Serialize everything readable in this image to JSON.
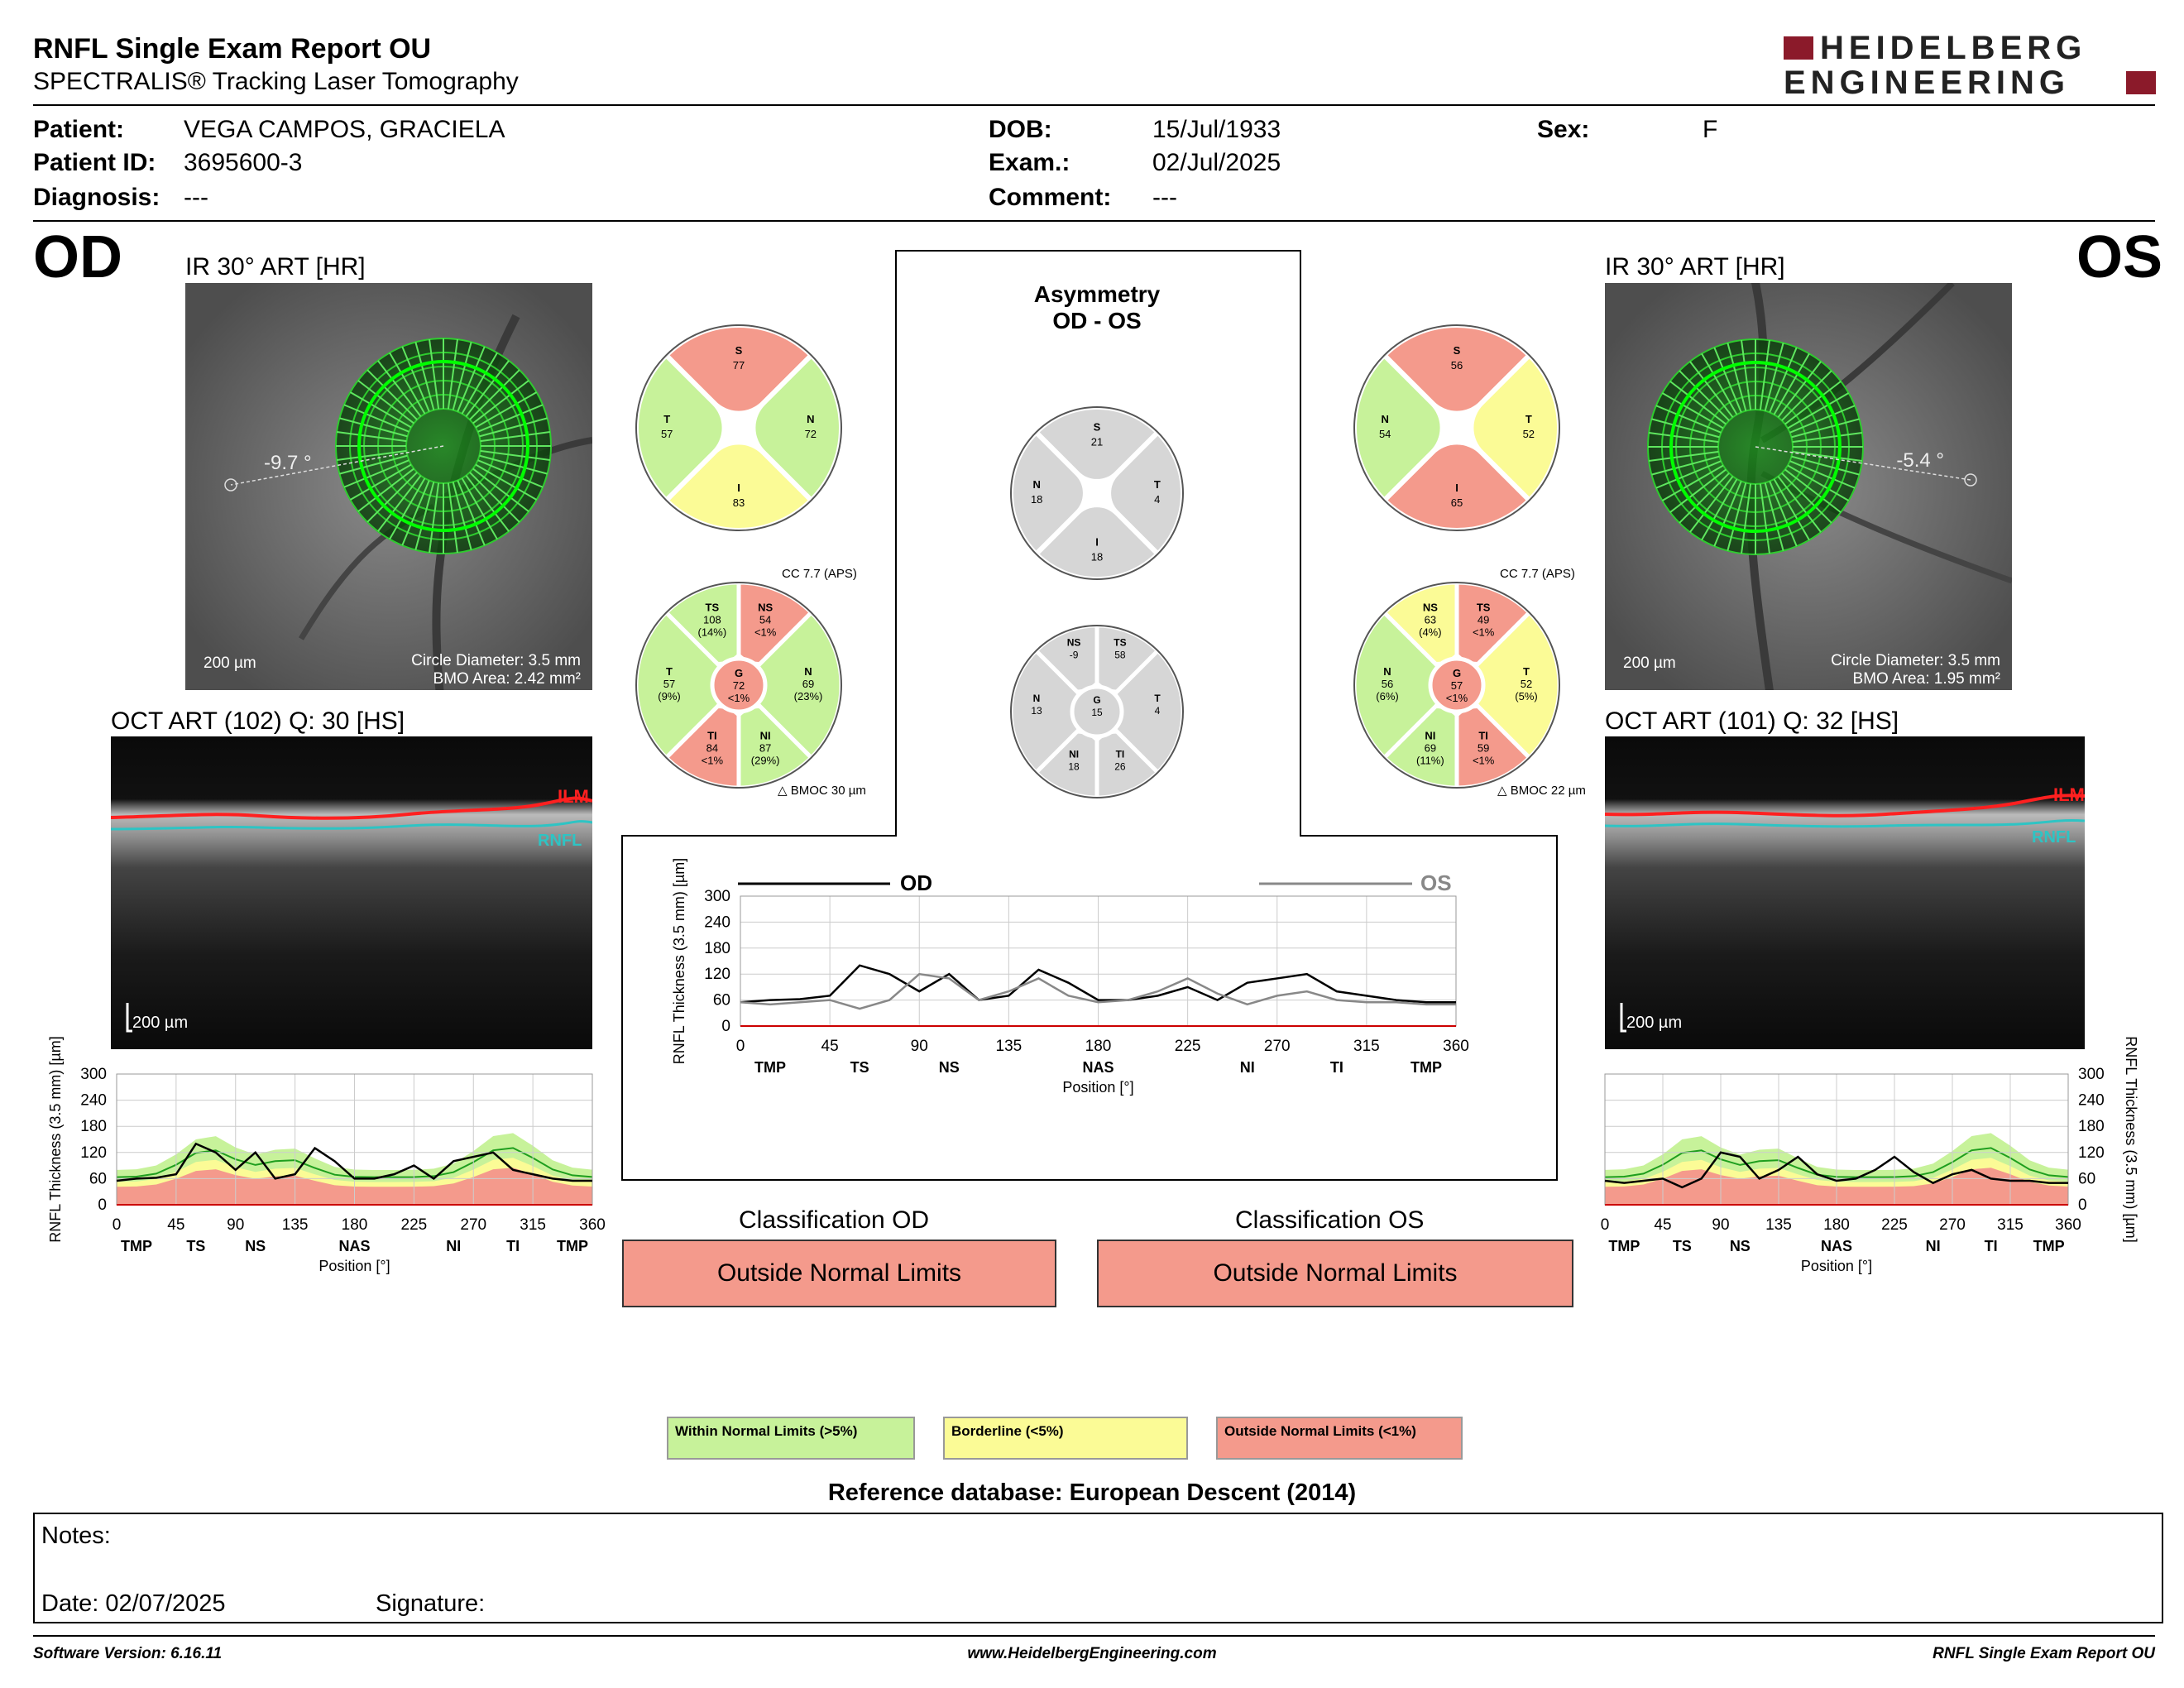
{
  "header": {
    "title": "RNFL Single Exam Report OU",
    "subtitle": "SPECTRALIS® Tracking Laser Tomography",
    "logo_line1": "HEIDELBERG",
    "logo_line2": "ENGINEERING"
  },
  "patient": {
    "patient_label": "Patient:",
    "patient_value": "VEGA CAMPOS, GRACIELA",
    "id_label": "Patient ID:",
    "id_value": "3695600-3",
    "diagnosis_label": "Diagnosis:",
    "diagnosis_value": "---",
    "dob_label": "DOB:",
    "dob_value": "15/Jul/1933",
    "exam_label": "Exam.:",
    "exam_value": "02/Jul/2025",
    "comment_label": "Comment:",
    "comment_value": "---",
    "sex_label": "Sex:",
    "sex_value": "F"
  },
  "od": {
    "eye": "OD",
    "ir_title": "IR 30° ART [HR]",
    "angle": "-9.7 °",
    "scale": "200 µm",
    "circle_diameter": "Circle Diameter: 3.5 mm",
    "bmo_area": "BMO Area: 2.42 mm²",
    "oct_title": "OCT ART (102) Q: 30 [HS]",
    "oct_scale": "200 µm",
    "ilm": "ILM",
    "rnfl": "RNFL",
    "cc": "CC 7.7 (APS)",
    "bmoc": "BMOC 30 µm",
    "quad": {
      "S": "77",
      "T": "57",
      "N": "72",
      "I": "83"
    },
    "sectors": {
      "TS": [
        "108",
        "(14%)"
      ],
      "NS": [
        "54",
        "<1%"
      ],
      "T": [
        "57",
        "(9%)"
      ],
      "N": [
        "69",
        "(23%)"
      ],
      "G": [
        "72",
        "<1%"
      ],
      "TI": [
        "84",
        "<1%"
      ],
      "NI": [
        "87",
        "(29%)"
      ]
    },
    "class_title": "Classification OD",
    "class_value": "Outside Normal Limits"
  },
  "os": {
    "eye": "OS",
    "ir_title": "IR 30° ART [HR]",
    "angle": "-5.4 °",
    "scale": "200 µm",
    "circle_diameter": "Circle Diameter: 3.5 mm",
    "bmo_area": "BMO Area: 1.95 mm²",
    "oct_title": "OCT ART (101) Q: 32 [HS]",
    "oct_scale": "200 µm",
    "ilm": "ILM",
    "rnfl": "RNFL",
    "cc": "CC 7.7 (APS)",
    "bmoc": "BMOC 22 µm",
    "quad": {
      "S": "56",
      "N": "54",
      "T": "52",
      "I": "65"
    },
    "sectors": {
      "NS": [
        "63",
        "(4%)"
      ],
      "TS": [
        "49",
        "<1%"
      ],
      "N": [
        "56",
        "(6%)"
      ],
      "T": [
        "52",
        "(5%)"
      ],
      "G": [
        "57",
        "<1%"
      ],
      "NI": [
        "69",
        "(11%)"
      ],
      "TI": [
        "59",
        "<1%"
      ]
    },
    "class_title": "Classification OS",
    "class_value": "Outside Normal Limits"
  },
  "asym": {
    "title1": "Asymmetry",
    "title2": "OD - OS",
    "quad": {
      "S": "21",
      "N": "18",
      "T": "4",
      "I": "18"
    },
    "sectors": {
      "NS": "-9",
      "TS": "58",
      "N": "13",
      "G": "15",
      "T": "4",
      "NI": "18",
      "TI": "26"
    }
  },
  "axis": {
    "ylabel": "RNFL Thickness (3.5 mm) [µm]",
    "xlabel": "Position [°]",
    "xticks": [
      "0",
      "45",
      "90",
      "135",
      "180",
      "225",
      "270",
      "315",
      "360"
    ],
    "yticks": [
      "0",
      "60",
      "120",
      "180",
      "240",
      "300"
    ],
    "regions": [
      "TMP",
      "TS",
      "NS",
      "NAS",
      "NI",
      "TI",
      "TMP"
    ]
  },
  "chart_data": [
    {
      "type": "line",
      "title": "",
      "xlabel": "Position [°]",
      "ylabel": "RNFL Thickness (3.5 mm) [µm]",
      "xlim": [
        0,
        360
      ],
      "ylim": [
        0,
        300
      ],
      "legend": "top",
      "x": [
        0,
        15,
        30,
        45,
        60,
        75,
        90,
        105,
        120,
        135,
        150,
        165,
        180,
        195,
        210,
        225,
        240,
        255,
        270,
        285,
        300,
        315,
        330,
        345,
        360
      ],
      "series": [
        {
          "name": "OD",
          "color": "#000000",
          "values": [
            55,
            60,
            62,
            70,
            140,
            120,
            80,
            120,
            60,
            70,
            130,
            100,
            60,
            60,
            70,
            90,
            60,
            100,
            110,
            120,
            80,
            70,
            60,
            55,
            55
          ]
        },
        {
          "name": "OS",
          "color": "#888888",
          "values": [
            55,
            50,
            55,
            60,
            40,
            60,
            120,
            110,
            60,
            80,
            110,
            70,
            55,
            60,
            80,
            110,
            75,
            50,
            70,
            80,
            60,
            55,
            55,
            50,
            50
          ]
        }
      ]
    },
    {
      "type": "line",
      "title": "",
      "xlabel": "Position [°]",
      "ylabel": "RNFL Thickness (3.5 mm) [µm]",
      "xlim": [
        0,
        360
      ],
      "ylim": [
        0,
        300
      ],
      "x": [
        0,
        15,
        30,
        45,
        60,
        75,
        90,
        105,
        120,
        135,
        150,
        165,
        180,
        195,
        210,
        225,
        240,
        255,
        270,
        285,
        300,
        315,
        330,
        345,
        360
      ],
      "series": [
        {
          "name": "OD",
          "color": "#000000",
          "values": [
            55,
            60,
            62,
            70,
            140,
            120,
            80,
            120,
            60,
            70,
            130,
            100,
            60,
            60,
            70,
            90,
            60,
            100,
            110,
            120,
            80,
            70,
            60,
            55,
            55
          ]
        }
      ]
    },
    {
      "type": "line",
      "title": "",
      "xlabel": "Position [°]",
      "ylabel": "RNFL Thickness (3.5 mm) [µm]",
      "xlim": [
        0,
        360
      ],
      "ylim": [
        0,
        300
      ],
      "x": [
        0,
        15,
        30,
        45,
        60,
        75,
        90,
        105,
        120,
        135,
        150,
        165,
        180,
        195,
        210,
        225,
        240,
        255,
        270,
        285,
        300,
        315,
        330,
        345,
        360
      ],
      "series": [
        {
          "name": "OS",
          "color": "#000000",
          "values": [
            55,
            50,
            55,
            60,
            40,
            60,
            120,
            110,
            60,
            80,
            110,
            70,
            55,
            60,
            80,
            110,
            75,
            50,
            70,
            80,
            60,
            55,
            55,
            50,
            50
          ]
        }
      ]
    }
  ],
  "legend": {
    "wnl": "Within Normal Limits (>5%)",
    "bl": "Borderline (<5%)",
    "onl": "Outside Normal Limits (<1%)",
    "wnl_color": "#c7f29a",
    "bl_color": "#fbfb96",
    "onl_color": "#f49a8c",
    "ref": "Reference database: European Descent (2014)"
  },
  "notes": {
    "notes_label": "Notes:",
    "date_label": "Date: 02/07/2025",
    "signature_label": "Signature:"
  },
  "footer": {
    "software": "Software Version: 6.16.11",
    "url": "www.HeidelbergEngineering.com",
    "report": "RNFL Single Exam Report OU"
  }
}
